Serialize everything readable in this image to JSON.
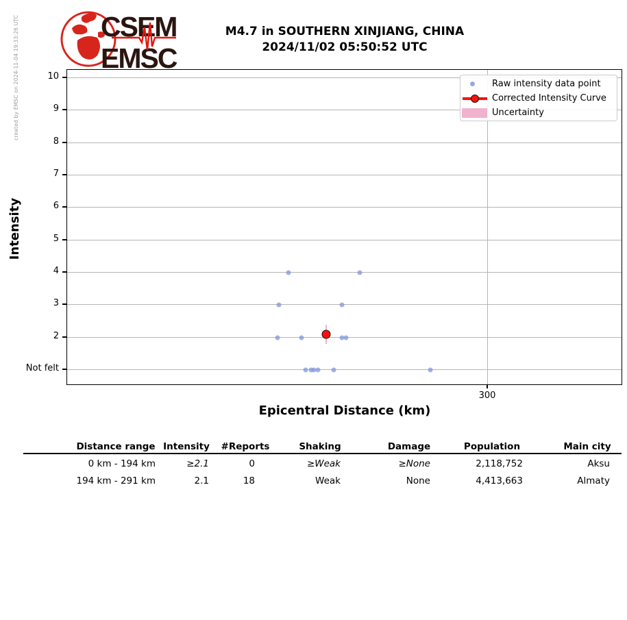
{
  "credit": "created by EMSC on 2024-11-04 19:33:26 UTC",
  "logo": {
    "line1": "CSEM",
    "line2": "EMSC",
    "brand_red": "#d8251c",
    "text_color": "#2a1511"
  },
  "title": {
    "line1": "M4.7 in SOUTHERN XINJIANG, CHINA",
    "line2": "2024/11/02 05:50:52 UTC"
  },
  "chart_data": {
    "type": "scatter",
    "title": "M4.7 in SOUTHERN XINJIANG, CHINA 2024/11/02 05:50:52 UTC",
    "xlabel": "Epicentral Distance (km)",
    "ylabel": "Intensity",
    "xlim": [
      0,
      396
    ],
    "ylim": [
      "Not felt (=1)",
      10.25
    ],
    "xticks": [
      "300"
    ],
    "yticks": [
      "10",
      "9",
      "8",
      "7",
      "6",
      "5",
      "4",
      "3",
      "2",
      "Not felt"
    ],
    "grid": true,
    "legend": {
      "position": "upper right",
      "entries": [
        "Raw intensity data point",
        "Corrected Intensity Curve",
        "Uncertainty"
      ]
    },
    "raw_points": [
      {
        "distance_km": 158,
        "intensity": 4
      },
      {
        "distance_km": 209,
        "intensity": 4
      },
      {
        "distance_km": 151,
        "intensity": 3
      },
      {
        "distance_km": 196,
        "intensity": 3
      },
      {
        "distance_km": 150,
        "intensity": 2
      },
      {
        "distance_km": 167,
        "intensity": 2
      },
      {
        "distance_km": 196,
        "intensity": 2
      },
      {
        "distance_km": 199,
        "intensity": 2
      },
      {
        "distance_km": 170,
        "intensity": "Not felt"
      },
      {
        "distance_km": 174,
        "intensity": "Not felt"
      },
      {
        "distance_km": 176,
        "intensity": "Not felt"
      },
      {
        "distance_km": 179,
        "intensity": "Not felt"
      },
      {
        "distance_km": 190,
        "intensity": "Not felt"
      },
      {
        "distance_km": 259,
        "intensity": "Not felt"
      }
    ],
    "corrected_curve": [
      {
        "distance_km": 185,
        "intensity": 2.1,
        "uncertainty_low": 1.8,
        "uncertainty_high": 2.4
      }
    ],
    "colors": {
      "raw_point": "#7d93d8",
      "corrected": "#fb100c",
      "uncertainty": "#f0b2cd",
      "grid": "#b5b5b5"
    }
  },
  "table": {
    "headers": [
      "Distance range",
      "Intensity",
      "#Reports",
      "Shaking",
      "Damage",
      "Population",
      "Main city"
    ],
    "rows": [
      [
        "0 km -  194 km",
        "≥2.1",
        "0",
        "≥Weak",
        "≥None",
        "2,118,752",
        "Aksu"
      ],
      [
        "194 km -  291 km",
        "2.1",
        "18",
        "Weak",
        "None",
        "4,413,663",
        "Almaty"
      ]
    ]
  }
}
